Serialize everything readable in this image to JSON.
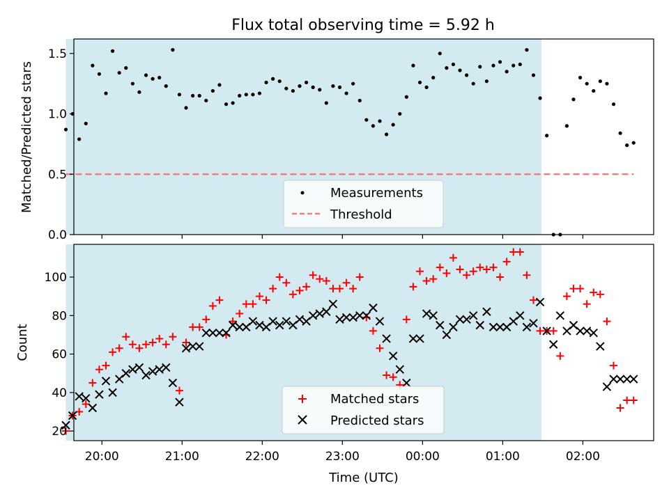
{
  "title": "Flux total observing time = 5.92 h",
  "x_axis": {
    "label": "Time (UTC)",
    "ticks": [
      "20:00",
      "21:00",
      "22:00",
      "23:00",
      "00:00",
      "01:00",
      "02:00"
    ]
  },
  "chart_data": [
    {
      "type": "scatter",
      "ylabel": "Matched/Predicted stars",
      "ylim": [
        0,
        1.62
      ],
      "yticks": [
        "0.0",
        "0.5",
        "1.0",
        "1.5"
      ],
      "xlim": [
        "19:39",
        "02:53"
      ],
      "shaded_window": [
        "19:33",
        "01:29"
      ],
      "legend": {
        "placement": "bottom-center",
        "entries": [
          "Measurements",
          "Threshold"
        ]
      },
      "threshold": {
        "name": "Threshold",
        "y": 0.5,
        "x": [
          "19:33",
          "02:38"
        ],
        "color": "#f08080"
      },
      "series": [
        {
          "name": "Measurements",
          "x": [
            "19:33",
            "19:38",
            "19:43",
            "19:48",
            "19:53",
            "19:58",
            "20:03",
            "20:08",
            "20:13",
            "20:18",
            "20:23",
            "20:28",
            "20:33",
            "20:38",
            "20:43",
            "20:48",
            "20:53",
            "20:58",
            "21:03",
            "21:08",
            "21:13",
            "21:18",
            "21:23",
            "21:28",
            "21:33",
            "21:38",
            "21:43",
            "21:48",
            "21:53",
            "21:58",
            "22:03",
            "22:08",
            "22:13",
            "22:18",
            "22:23",
            "22:28",
            "22:33",
            "22:38",
            "22:43",
            "22:48",
            "22:53",
            "22:58",
            "23:03",
            "23:08",
            "23:13",
            "23:18",
            "23:23",
            "23:28",
            "23:33",
            "23:38",
            "23:43",
            "23:48",
            "23:53",
            "23:58",
            "00:03",
            "00:08",
            "00:13",
            "00:18",
            "00:23",
            "00:28",
            "00:33",
            "00:38",
            "00:43",
            "00:48",
            "00:53",
            "00:58",
            "01:03",
            "01:08",
            "01:13",
            "01:18",
            "01:23",
            "01:28",
            "01:33",
            "01:38",
            "01:43",
            "01:48",
            "01:53",
            "01:58",
            "02:03",
            "02:08",
            "02:13",
            "02:18",
            "02:23",
            "02:28",
            "02:33",
            "02:38"
          ],
          "y": [
            0.87,
            1.0,
            0.79,
            0.92,
            1.4,
            1.33,
            1.17,
            1.52,
            1.34,
            1.38,
            1.25,
            1.18,
            1.32,
            1.29,
            1.3,
            1.23,
            1.53,
            1.16,
            1.05,
            1.15,
            1.15,
            1.11,
            1.19,
            1.24,
            1.08,
            1.09,
            1.15,
            1.16,
            1.16,
            1.17,
            1.26,
            1.29,
            1.27,
            1.21,
            1.19,
            1.23,
            1.26,
            1.22,
            1.2,
            1.09,
            1.23,
            1.22,
            1.17,
            1.25,
            1.11,
            0.95,
            0.9,
            0.94,
            0.83,
            0.91,
            1.0,
            1.14,
            1.4,
            1.26,
            1.22,
            1.3,
            1.5,
            1.38,
            1.41,
            1.36,
            1.32,
            1.25,
            1.39,
            1.27,
            1.4,
            1.43,
            1.35,
            1.4,
            1.41,
            1.53,
            1.32,
            1.13,
            0.82,
            0.0,
            0.0,
            0.9,
            1.12,
            1.3,
            1.25,
            1.19,
            1.27,
            1.25,
            1.08,
            0.84,
            0.74,
            0.76
          ],
          "color": "#000000"
        }
      ]
    },
    {
      "type": "scatter",
      "ylabel": "Count",
      "ylim": [
        15,
        117
      ],
      "yticks": [
        "20",
        "40",
        "60",
        "80",
        "100"
      ],
      "xlim": [
        "19:39",
        "02:53"
      ],
      "shaded_window": [
        "19:33",
        "01:29"
      ],
      "legend": {
        "placement": "bottom-center",
        "entries": [
          "Matched stars",
          "Predicted stars"
        ]
      },
      "series": [
        {
          "name": "Matched stars",
          "marker": "+",
          "color": "#ff0000",
          "x": [
            "19:33",
            "19:38",
            "19:43",
            "19:48",
            "19:53",
            "19:58",
            "20:03",
            "20:08",
            "20:13",
            "20:18",
            "20:23",
            "20:28",
            "20:33",
            "20:38",
            "20:43",
            "20:48",
            "20:53",
            "20:58",
            "21:03",
            "21:08",
            "21:13",
            "21:18",
            "21:23",
            "21:28",
            "21:33",
            "21:38",
            "21:43",
            "21:48",
            "21:53",
            "21:58",
            "22:03",
            "22:08",
            "22:13",
            "22:18",
            "22:23",
            "22:28",
            "22:33",
            "22:38",
            "22:43",
            "22:48",
            "22:53",
            "22:58",
            "23:03",
            "23:08",
            "23:13",
            "23:18",
            "23:23",
            "23:28",
            "23:33",
            "23:38",
            "23:43",
            "23:48",
            "23:53",
            "23:58",
            "00:03",
            "00:08",
            "00:13",
            "00:18",
            "00:23",
            "00:28",
            "00:33",
            "00:38",
            "00:43",
            "00:48",
            "00:53",
            "00:58",
            "01:03",
            "01:08",
            "01:13",
            "01:18",
            "01:23",
            "01:28",
            "01:33",
            "01:38",
            "01:43",
            "01:48",
            "01:53",
            "01:58",
            "02:03",
            "02:08",
            "02:13",
            "02:18",
            "02:23",
            "02:28",
            "02:33",
            "02:38"
          ],
          "y": [
            20,
            28,
            30,
            34,
            45,
            52,
            54,
            61,
            63,
            69,
            65,
            63,
            65,
            66,
            68,
            65,
            69,
            41,
            66,
            74,
            74,
            78,
            85,
            88,
            70,
            77,
            81,
            86,
            86,
            90,
            88,
            94,
            100,
            97,
            91,
            93,
            95,
            101,
            99,
            98,
            94,
            94,
            97,
            94,
            100,
            79,
            72,
            63,
            49,
            48,
            44,
            78,
            95,
            103,
            98,
            99,
            105,
            102,
            110,
            104,
            101,
            103,
            105,
            104,
            105,
            100,
            108,
            113,
            113,
            101,
            88,
            72,
            72,
            72,
            59,
            90,
            94,
            94,
            86,
            92,
            91,
            77,
            54,
            32,
            36,
            36
          ],
          "draw_x": [
            "19:33",
            "19:38",
            "19:43",
            "19:48",
            "19:53",
            "19:58",
            "20:03",
            "20:08",
            "20:13",
            "20:18",
            "20:23",
            "20:28",
            "20:33",
            "20:38",
            "20:43",
            "20:48",
            "20:53",
            "20:58",
            "21:03",
            "21:08",
            "21:13",
            "21:18",
            "21:23",
            "21:28",
            "21:33",
            "21:38",
            "21:43",
            "21:48",
            "21:53",
            "21:58",
            "22:03",
            "22:08",
            "22:13",
            "22:18",
            "22:23",
            "22:28",
            "22:33",
            "22:38",
            "22:43",
            "22:48",
            "22:53",
            "22:58",
            "23:03",
            "23:08",
            "23:13",
            "23:18",
            "23:23",
            "23:28",
            "23:33",
            "23:38",
            "23:43",
            "23:48",
            "23:53",
            "23:58",
            "00:03",
            "00:08",
            "00:13",
            "00:18",
            "00:23",
            "00:28",
            "00:33",
            "00:38",
            "00:43",
            "00:48",
            "00:53",
            "00:58",
            "01:03",
            "01:08",
            "01:13",
            "01:18",
            "01:23",
            "01:28",
            "01:33",
            "01:38",
            "01:43",
            "01:48",
            "01:53",
            "01:58",
            "02:03",
            "02:08",
            "02:13",
            "02:18",
            "02:23",
            "02:28",
            "02:33",
            "02:38"
          ]
        },
        {
          "name": "Predicted stars",
          "marker": "x",
          "color": "#000000",
          "x": [
            "19:33",
            "19:38",
            "19:43",
            "19:48",
            "19:53",
            "19:58",
            "20:03",
            "20:08",
            "20:13",
            "20:18",
            "20:23",
            "20:28",
            "20:33",
            "20:38",
            "20:43",
            "20:48",
            "20:53",
            "20:58",
            "21:03",
            "21:08",
            "21:13",
            "21:18",
            "21:23",
            "21:28",
            "21:33",
            "21:38",
            "21:43",
            "21:48",
            "21:53",
            "21:58",
            "22:03",
            "22:08",
            "22:13",
            "22:18",
            "22:23",
            "22:28",
            "22:33",
            "22:38",
            "22:43",
            "22:48",
            "22:53",
            "22:58",
            "23:03",
            "23:08",
            "23:13",
            "23:18",
            "23:23",
            "23:28",
            "23:33",
            "23:38",
            "23:43",
            "23:48",
            "23:53",
            "23:58",
            "00:03",
            "00:08",
            "00:13",
            "00:18",
            "00:23",
            "00:28",
            "00:33",
            "00:38",
            "00:43",
            "00:48",
            "00:53",
            "00:58",
            "01:03",
            "01:08",
            "01:13",
            "01:18",
            "01:23",
            "01:28",
            "01:33",
            "01:38",
            "01:43",
            "01:48",
            "01:53",
            "01:58",
            "02:03",
            "02:08",
            "02:13",
            "02:18",
            "02:23",
            "02:28",
            "02:33",
            "02:38"
          ],
          "y": [
            23,
            28,
            38,
            37,
            32,
            39,
            46,
            40,
            47,
            50,
            52,
            53,
            49,
            51,
            52,
            53,
            45,
            35,
            63,
            64,
            64,
            71,
            71,
            71,
            71,
            75,
            74,
            74,
            77,
            75,
            74,
            77,
            75,
            77,
            75,
            78,
            77,
            80,
            81,
            82,
            86,
            78,
            79,
            79,
            80,
            80,
            84,
            77,
            68,
            59,
            52,
            45,
            68,
            68,
            81,
            80,
            75,
            70,
            74,
            78,
            78,
            80,
            75,
            82,
            74,
            74,
            74,
            77,
            80,
            74,
            76,
            87,
            72,
            65,
            80,
            72,
            75,
            72,
            72,
            71,
            64,
            43,
            47,
            47,
            47,
            47
          ]
        }
      ]
    }
  ]
}
